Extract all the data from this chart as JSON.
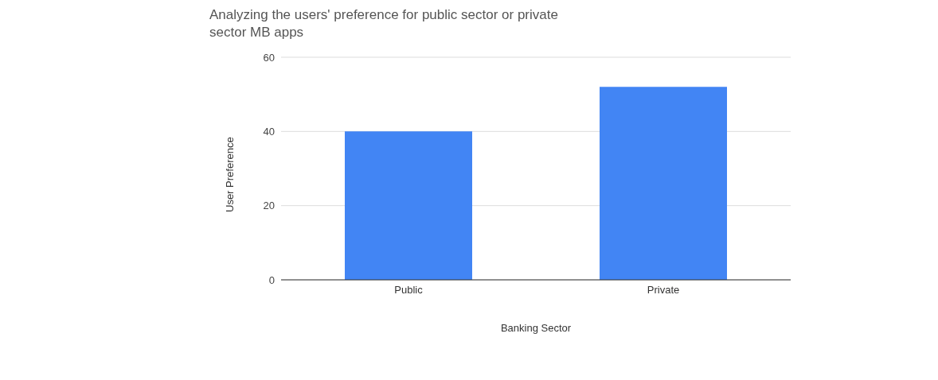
{
  "chart_data": {
    "type": "bar",
    "title": "Analyzing the users' preference for public sector or private sector MB apps",
    "xlabel": "Banking Sector",
    "ylabel": "User Preference",
    "categories": [
      "Public",
      "Private"
    ],
    "values": [
      40,
      52
    ],
    "color": "#4285f4",
    "ylim": [
      0,
      60
    ],
    "yticks": [
      0,
      20,
      40,
      60
    ],
    "grid": "y"
  }
}
